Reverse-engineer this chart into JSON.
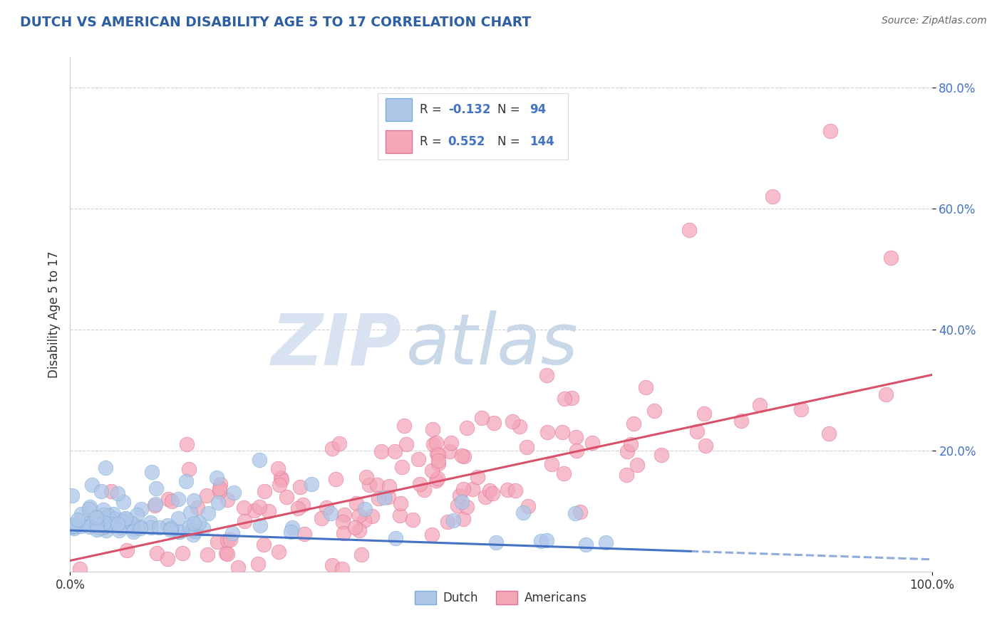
{
  "title": "DUTCH VS AMERICAN DISABILITY AGE 5 TO 17 CORRELATION CHART",
  "source_text": "Source: ZipAtlas.com",
  "ylabel": "Disability Age 5 to 17",
  "xlim": [
    0.0,
    1.0
  ],
  "ylim": [
    0.0,
    0.85
  ],
  "dutch_color_face": "#aec6e8",
  "dutch_color_edge": "#7aaed4",
  "american_color_face": "#f4a7b9",
  "american_color_edge": "#e07090",
  "dutch_line_color": "#4472c4",
  "american_line_color": "#d9506a",
  "title_color": "#2e5fa3",
  "source_color": "#666666",
  "watermark_zip_color": "#d8e2f0",
  "watermark_atlas_color": "#c8d8e8",
  "grid_color": "#cccccc",
  "background_color": "#ffffff",
  "legend_text_color_label": "#333333",
  "legend_text_color_value": "#4472c4",
  "ytick_color": "#4472c4",
  "xtick_color": "#333333",
  "dutch_line_start_y": 0.068,
  "dutch_line_end_y": 0.02,
  "american_line_start_y": 0.018,
  "american_line_end_y": 0.325
}
